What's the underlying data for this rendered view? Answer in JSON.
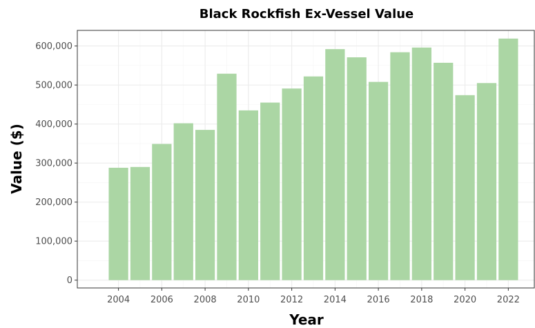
{
  "chart_data": {
    "type": "bar",
    "title": "Black Rockfish Ex-Vessel Value",
    "xlabel": "Year",
    "ylabel": "Value ($)",
    "x": [
      2004,
      2005,
      2006,
      2007,
      2008,
      2009,
      2010,
      2011,
      2012,
      2013,
      2014,
      2015,
      2016,
      2017,
      2018,
      2019,
      2020,
      2021,
      2022
    ],
    "values": [
      288000,
      290000,
      349000,
      402000,
      385000,
      529000,
      435000,
      455000,
      491000,
      522000,
      592000,
      571000,
      508000,
      584000,
      596000,
      557000,
      474000,
      505000,
      619000
    ],
    "xticks": [
      "2004",
      "2006",
      "2008",
      "2010",
      "2012",
      "2014",
      "2016",
      "2018",
      "2020",
      "2022"
    ],
    "yticks": [
      "0",
      "100,000",
      "200,000",
      "300,000",
      "400,000",
      "500,000",
      "600,000"
    ],
    "ylim": [
      -20000,
      640000
    ],
    "xlim": [
      2002.1,
      2023.2
    ],
    "bar_color": "#abd6a4",
    "grid": true,
    "legend": "none"
  }
}
